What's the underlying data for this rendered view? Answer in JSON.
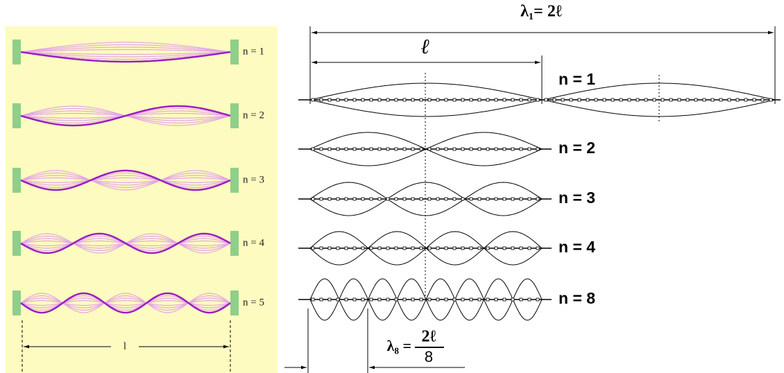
{
  "left_panel": {
    "modes": [
      {
        "label": "n = 1"
      },
      {
        "label": "n = 2"
      },
      {
        "label": "n = 3"
      },
      {
        "label": "n = 4"
      },
      {
        "label": "n = 5"
      }
    ],
    "length_label": "l"
  },
  "right_panel": {
    "lambda1_label": "λ₁= 2ℓ",
    "length_label": "ℓ",
    "modes": [
      {
        "label": "n = 1"
      },
      {
        "label": "n = 2"
      },
      {
        "label": "n = 3"
      },
      {
        "label": "n = 4"
      },
      {
        "label": "n = 8"
      }
    ],
    "lambda8": {
      "lhs": "λ₈ =",
      "numerator": "2ℓ",
      "denominator": "8"
    }
  }
}
